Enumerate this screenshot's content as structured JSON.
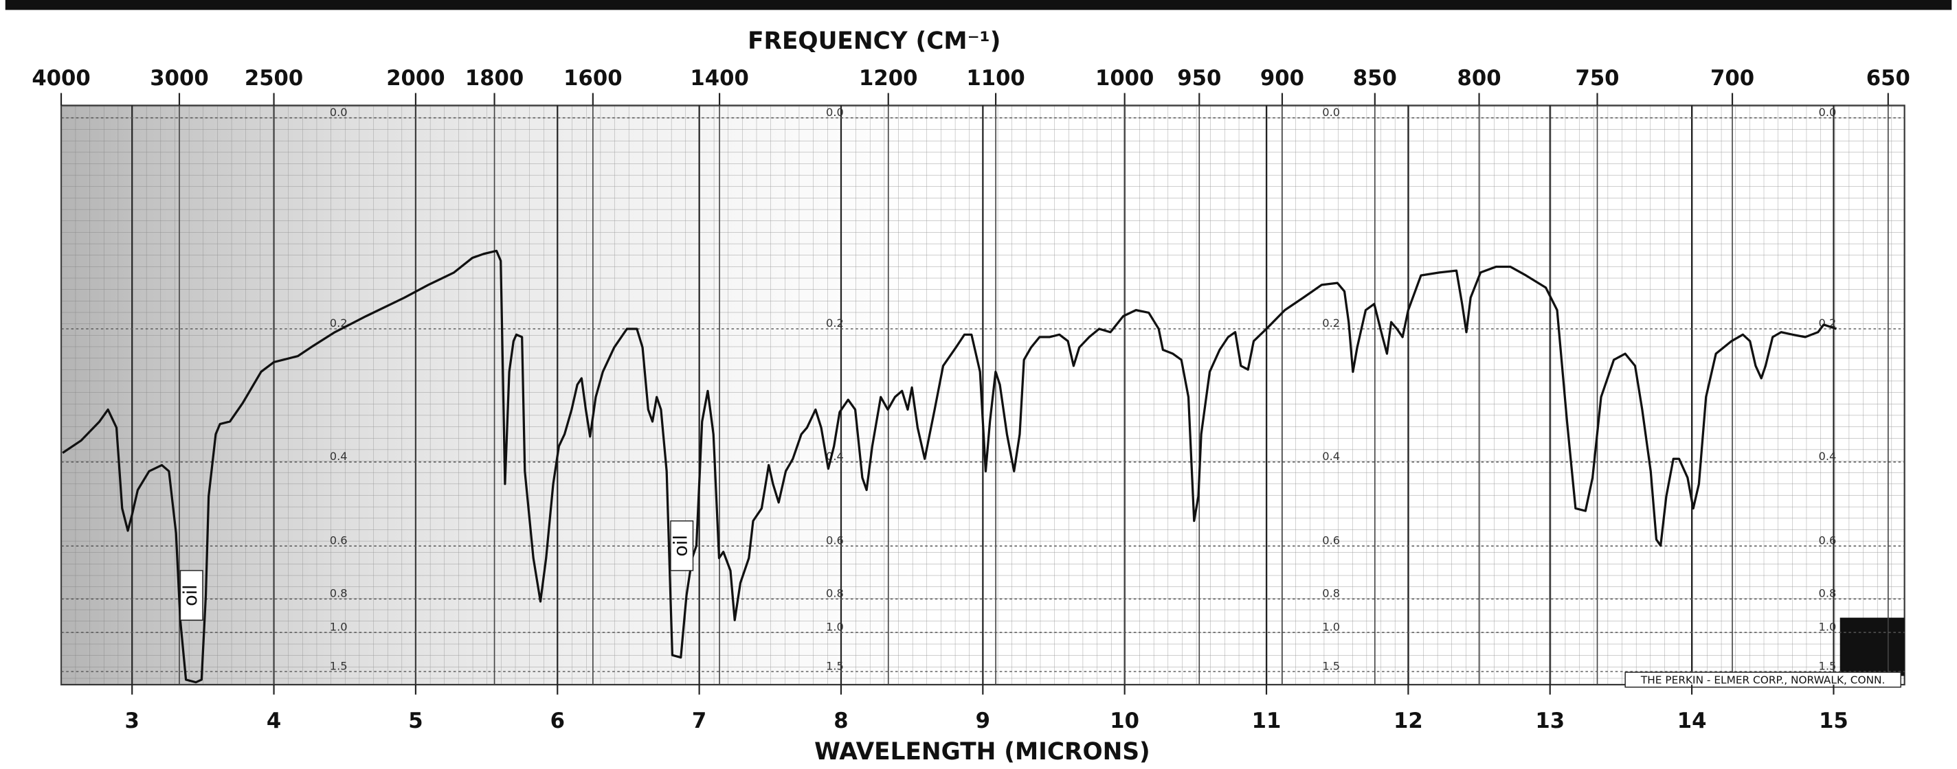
{
  "chart_data": {
    "type": "line",
    "x2label": "FREQUENCY (CM⁻¹)",
    "xlabel": "WAVELENGTH (MICRONS)",
    "footer": "THE PERKIN - ELMER CORP., NORWALK, CONN.",
    "annotations": [
      "oil",
      "oil"
    ],
    "yscale": "absorbance",
    "color": "#111111",
    "xlim": [
      2.5,
      15.5
    ],
    "ylim": [
      0,
      2
    ],
    "xticks": [
      3,
      4,
      5,
      6,
      7,
      8,
      9,
      10,
      11,
      12,
      13,
      14,
      15
    ],
    "x2ticks": [
      4000,
      3000,
      2500,
      2000,
      1800,
      1600,
      1400,
      1200,
      1100,
      1000,
      950,
      900,
      850,
      800,
      750,
      700,
      650
    ],
    "yticks": [
      {
        "value": 0,
        "label": "0.0"
      },
      0.2,
      0.4,
      0.6,
      0.8,
      {
        "value": 1,
        "label": "1.0"
      },
      1.5
    ],
    "grid": true,
    "x": [
      2.51,
      2.64,
      2.77,
      2.83,
      2.89,
      2.93,
      2.97,
      3.0,
      3.04,
      3.12,
      3.21,
      3.26,
      3.31,
      3.34,
      3.38,
      3.45,
      3.49,
      3.52,
      3.54,
      3.59,
      3.62,
      3.69,
      3.78,
      3.91,
      4.0,
      4.17,
      4.26,
      4.43,
      4.65,
      4.92,
      5.09,
      5.27,
      5.4,
      5.48,
      5.57,
      5.6,
      5.62,
      5.63,
      5.66,
      5.69,
      5.71,
      5.75,
      5.77,
      5.83,
      5.88,
      5.92,
      5.97,
      6.01,
      6.05,
      6.1,
      6.14,
      6.17,
      6.2,
      6.23,
      6.27,
      6.32,
      6.4,
      6.49,
      6.56,
      6.6,
      6.64,
      6.67,
      6.7,
      6.73,
      6.77,
      6.81,
      6.87,
      6.91,
      6.95,
      6.98,
      7.02,
      7.06,
      7.1,
      7.14,
      7.17,
      7.22,
      7.25,
      7.29,
      7.35,
      7.38,
      7.44,
      7.49,
      7.52,
      7.56,
      7.61,
      7.66,
      7.72,
      7.76,
      7.82,
      7.86,
      7.91,
      7.95,
      7.99,
      8.05,
      8.1,
      8.15,
      8.18,
      8.22,
      8.28,
      8.33,
      8.38,
      8.43,
      8.47,
      8.5,
      8.54,
      8.59,
      8.66,
      8.72,
      8.81,
      8.87,
      8.92,
      8.98,
      9.02,
      9.05,
      9.09,
      9.12,
      9.17,
      9.22,
      9.26,
      9.29,
      9.34,
      9.4,
      9.47,
      9.54,
      9.6,
      9.64,
      9.68,
      9.75,
      9.82,
      9.9,
      9.99,
      10.08,
      10.17,
      10.24,
      10.27,
      10.34,
      10.4,
      10.45,
      10.49,
      10.52,
      10.54,
      10.6,
      10.67,
      10.73,
      10.78,
      10.82,
      10.87,
      10.91,
      11.0,
      11.13,
      11.26,
      11.39,
      11.5,
      11.55,
      11.58,
      11.61,
      11.64,
      11.7,
      11.76,
      11.81,
      11.85,
      11.88,
      11.92,
      11.96,
      12.0,
      12.09,
      12.22,
      12.34,
      12.38,
      12.41,
      12.44,
      12.51,
      12.62,
      12.72,
      12.83,
      12.97,
      13.05,
      13.12,
      13.18,
      13.25,
      13.3,
      13.36,
      13.45,
      13.53,
      13.6,
      13.65,
      13.71,
      13.75,
      13.78,
      13.82,
      13.87,
      13.91,
      13.97,
      14.01,
      14.05,
      14.1,
      14.17,
      14.28,
      14.36,
      14.41,
      14.45,
      14.49,
      14.52,
      14.57,
      14.63,
      14.71,
      14.8,
      14.89,
      14.93,
      15.02
    ],
    "values": [
      0.383,
      0.361,
      0.329,
      0.31,
      0.339,
      0.499,
      0.556,
      0.514,
      0.457,
      0.418,
      0.406,
      0.418,
      0.563,
      0.915,
      1.76,
      1.89,
      1.76,
      0.783,
      0.471,
      0.35,
      0.333,
      0.329,
      0.3,
      0.255,
      0.242,
      0.234,
      0.223,
      0.204,
      0.185,
      0.164,
      0.15,
      0.137,
      0.122,
      0.118,
      0.115,
      0.125,
      0.31,
      0.444,
      0.255,
      0.215,
      0.207,
      0.21,
      0.418,
      0.638,
      0.812,
      0.638,
      0.444,
      0.371,
      0.35,
      0.31,
      0.273,
      0.264,
      0.31,
      0.354,
      0.291,
      0.255,
      0.223,
      0.2,
      0.2,
      0.223,
      0.31,
      0.329,
      0.291,
      0.31,
      0.418,
      1.22,
      1.25,
      0.783,
      0.638,
      0.599,
      0.329,
      0.282,
      0.35,
      0.638,
      0.618,
      0.682,
      0.915,
      0.729,
      0.638,
      0.53,
      0.499,
      0.406,
      0.444,
      0.485,
      0.418,
      0.394,
      0.35,
      0.339,
      0.31,
      0.339,
      0.413,
      0.371,
      0.314,
      0.295,
      0.31,
      0.431,
      0.457,
      0.371,
      0.291,
      0.31,
      0.291,
      0.282,
      0.31,
      0.277,
      0.339,
      0.394,
      0.31,
      0.247,
      0.223,
      0.207,
      0.207,
      0.255,
      0.418,
      0.329,
      0.255,
      0.273,
      0.35,
      0.418,
      0.35,
      0.239,
      0.223,
      0.21,
      0.21,
      0.207,
      0.215,
      0.247,
      0.223,
      0.21,
      0.2,
      0.204,
      0.185,
      0.178,
      0.181,
      0.2,
      0.226,
      0.231,
      0.239,
      0.291,
      0.53,
      0.471,
      0.35,
      0.255,
      0.226,
      0.21,
      0.204,
      0.247,
      0.252,
      0.215,
      0.2,
      0.178,
      0.164,
      0.15,
      0.148,
      0.157,
      0.192,
      0.255,
      0.223,
      0.178,
      0.171,
      0.204,
      0.231,
      0.192,
      0.2,
      0.21,
      0.178,
      0.14,
      0.137,
      0.135,
      0.171,
      0.204,
      0.164,
      0.137,
      0.131,
      0.131,
      0.14,
      0.153,
      0.178,
      0.329,
      0.499,
      0.505,
      0.431,
      0.291,
      0.239,
      0.231,
      0.247,
      0.31,
      0.418,
      0.581,
      0.599,
      0.471,
      0.394,
      0.394,
      0.431,
      0.499,
      0.444,
      0.291,
      0.231,
      0.215,
      0.207,
      0.215,
      0.247,
      0.264,
      0.247,
      0.21,
      0.204,
      0.207,
      0.21,
      0.204,
      0.195,
      0.2
    ]
  }
}
